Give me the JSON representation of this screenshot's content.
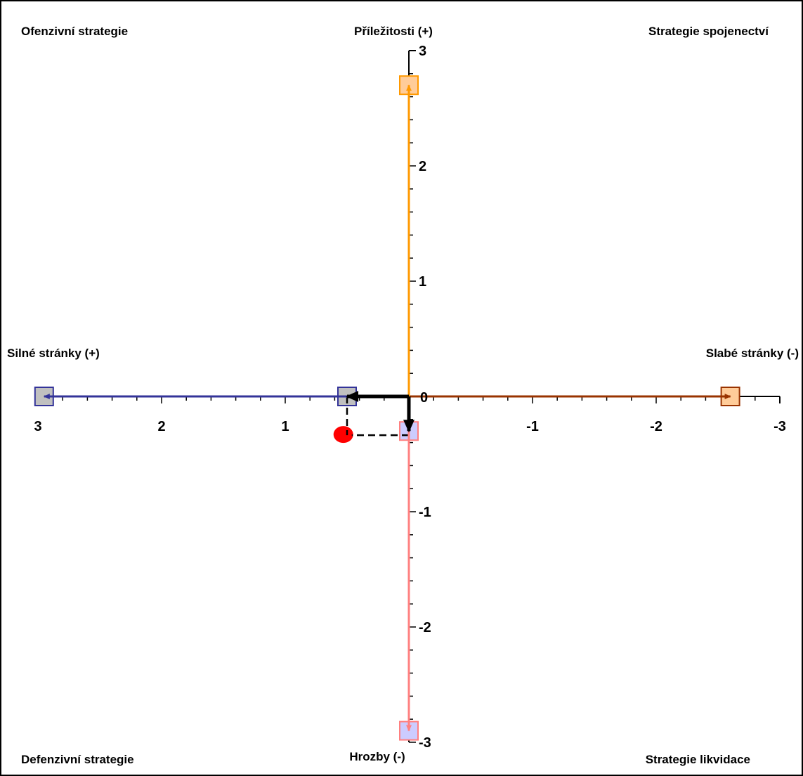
{
  "chart_data": {
    "type": "scatter",
    "title": "",
    "quadrants": {
      "top_left": "Ofenzivní strategie",
      "top_right": "Strategie spojenectví",
      "bottom_left": "Defenzivní strategie",
      "bottom_right": "Strategie likvidace"
    },
    "axis_labels": {
      "top": "Příležitosti (+)",
      "bottom": "Hrozby (-)",
      "left": "Silné stránky (+)",
      "right": "Slabé stránky (-)"
    },
    "x_axis": {
      "range": [
        3,
        -3
      ],
      "reversed": true,
      "ticks": [
        3,
        2,
        1,
        0,
        -1,
        -2,
        -3
      ],
      "tick_labels": [
        "3",
        "2",
        "1",
        "-1",
        "-2",
        "-3"
      ]
    },
    "y_axis": {
      "range": [
        -3,
        3
      ],
      "ticks": [
        3,
        2,
        1,
        -1,
        -2,
        -3
      ],
      "tick_labels": [
        "3",
        "2",
        "1",
        "-1",
        "-2",
        "-3"
      ]
    },
    "origin_label": "0",
    "vectors": [
      {
        "name": "strengths",
        "from": [
          0,
          0
        ],
        "to": [
          2.95,
          0
        ],
        "color": "#333399",
        "marker_color": "#c0c0c0"
      },
      {
        "name": "weaknesses",
        "from": [
          0,
          0
        ],
        "to": [
          -2.6,
          0
        ],
        "color": "#993300",
        "marker_color": "#ffcc99"
      },
      {
        "name": "opportunities",
        "from": [
          0,
          0
        ],
        "to": [
          0,
          2.7
        ],
        "color": "#ff9900",
        "marker_color": "#ffcc99"
      },
      {
        "name": "threats",
        "from": [
          0,
          0
        ],
        "to": [
          0,
          -2.9
        ],
        "color": "#ff8080",
        "marker_color": "#ccccff"
      },
      {
        "name": "resultant-x",
        "from": [
          0,
          0
        ],
        "to": [
          0.5,
          0
        ],
        "color": "#000000",
        "marker_color": "#c0c0c0"
      },
      {
        "name": "resultant-y",
        "from": [
          0,
          0
        ],
        "to": [
          0,
          -0.3
        ],
        "color": "#000000",
        "marker_color": "#ccccff"
      }
    ],
    "result_point": {
      "x": 0.53,
      "y": -0.33,
      "color": "#ff0000"
    },
    "grid": false
  }
}
